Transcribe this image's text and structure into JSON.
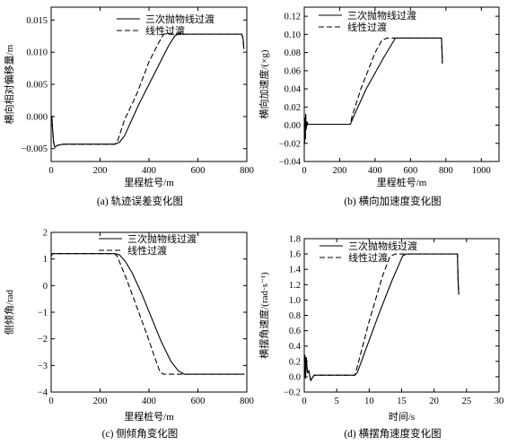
{
  "chart_data": [
    {
      "type": "line",
      "caption": "(a) 轨迹误差变化图",
      "xlabel": "里程桩号/m",
      "ylabel": "横向相对偏移量/m",
      "xlim": [
        0,
        800
      ],
      "ylim": [
        -0.007,
        0.017
      ],
      "xticks": [
        0,
        200,
        400,
        600,
        800
      ],
      "yticks": [
        -0.005,
        0.0,
        0.005,
        0.01,
        0.015
      ],
      "xtick_labels": [
        "0",
        "200",
        "400",
        "600",
        "800"
      ],
      "ytick_labels": [
        "−0.005",
        "0.000",
        "0.005",
        "0.010",
        "0.015"
      ],
      "legend_position": "top-center",
      "series": [
        {
          "name": "三次抛物线过渡",
          "style": "solid",
          "x": [
            0,
            3,
            6,
            10,
            15,
            25,
            50,
            150,
            260,
            280,
            300,
            330,
            360,
            400,
            440,
            480,
            505,
            525,
            540,
            600,
            700,
            780,
            785,
            788
          ],
          "y": [
            0.0,
            0.0,
            -0.002,
            -0.004,
            -0.0048,
            -0.0045,
            -0.0043,
            -0.0043,
            -0.0043,
            -0.004,
            -0.003,
            -0.0005,
            0.002,
            0.005,
            0.008,
            0.011,
            0.0125,
            0.013,
            0.0128,
            0.0128,
            0.0128,
            0.0128,
            0.012,
            0.0105
          ]
        },
        {
          "name": "线性过渡",
          "style": "dashed",
          "x": [
            0,
            3,
            6,
            10,
            15,
            25,
            50,
            150,
            260,
            270,
            300,
            350,
            400,
            440,
            460,
            475,
            500,
            600,
            700,
            780,
            785,
            788
          ],
          "y": [
            0.0,
            0.0,
            -0.002,
            -0.004,
            -0.0048,
            -0.0045,
            -0.0043,
            -0.0043,
            -0.0043,
            -0.004,
            -0.0005,
            0.0035,
            0.0085,
            0.0115,
            0.0128,
            0.013,
            0.0128,
            0.0128,
            0.0128,
            0.0128,
            0.012,
            0.0105
          ]
        }
      ]
    },
    {
      "type": "line",
      "caption": "(b) 横向加速度变化图",
      "xlabel": "里程桩号/m",
      "ylabel": "横向加速度/(×g)",
      "xlim": [
        0,
        1100
      ],
      "ylim": [
        -0.04,
        0.13
      ],
      "xticks": [
        0,
        200,
        400,
        600,
        800,
        1000
      ],
      "yticks": [
        -0.04,
        -0.02,
        0.0,
        0.02,
        0.04,
        0.06,
        0.08,
        0.1,
        0.12
      ],
      "xtick_labels": [
        "0",
        "200",
        "400",
        "600",
        "800",
        "1000"
      ],
      "ytick_labels": [
        "−0.04",
        "−0.02",
        "0.00",
        "0.02",
        "0.04",
        "0.06",
        "0.08",
        "0.10",
        "0.12"
      ],
      "legend_position": "top-center",
      "series": [
        {
          "name": "三次抛物线过渡",
          "style": "solid",
          "x": [
            0,
            2,
            4,
            6,
            8,
            10,
            14,
            20,
            40,
            260,
            280,
            350,
            450,
            515,
            540,
            700,
            775,
            778,
            780
          ],
          "y": [
            0.0,
            -0.02,
            0.008,
            -0.015,
            0.012,
            -0.005,
            0.004,
            0.001,
            0.001,
            0.001,
            0.01,
            0.04,
            0.075,
            0.096,
            0.096,
            0.096,
            0.096,
            0.08,
            0.068
          ]
        },
        {
          "name": "线性过渡",
          "style": "dashed",
          "x": [
            0,
            2,
            4,
            6,
            8,
            10,
            14,
            20,
            40,
            260,
            270,
            320,
            400,
            440,
            470,
            500,
            700,
            775,
            778,
            780
          ],
          "y": [
            0.0,
            -0.02,
            0.008,
            -0.015,
            0.012,
            -0.005,
            0.004,
            0.001,
            0.001,
            0.001,
            0.01,
            0.04,
            0.08,
            0.094,
            0.096,
            0.096,
            0.096,
            0.096,
            0.08,
            0.068
          ]
        }
      ]
    },
    {
      "type": "line",
      "caption": "(c) 侧倾角变化图",
      "xlabel": "里程桩号/m",
      "ylabel": "侧倾角/rad",
      "xlim": [
        0,
        800
      ],
      "ylim": [
        -4,
        2
      ],
      "xticks": [
        0,
        200,
        400,
        600,
        800
      ],
      "yticks": [
        -4,
        -3,
        -2,
        -1,
        0,
        1,
        2
      ],
      "xtick_labels": [
        "0",
        "200",
        "400",
        "600",
        "800"
      ],
      "ytick_labels": [
        "−4",
        "−3",
        "−2",
        "−1",
        "0",
        "1",
        "2"
      ],
      "legend_position": "top-center",
      "series": [
        {
          "name": "三次抛物线过渡",
          "style": "solid",
          "x": [
            0,
            5,
            20,
            100,
            200,
            260,
            280,
            300,
            330,
            370,
            410,
            450,
            490,
            520,
            545,
            560,
            600,
            700,
            790
          ],
          "y": [
            1.1,
            1.2,
            1.2,
            1.2,
            1.2,
            1.2,
            1.15,
            0.95,
            0.5,
            -0.3,
            -1.2,
            -2.1,
            -2.85,
            -3.2,
            -3.33,
            -3.33,
            -3.33,
            -3.33,
            -3.33
          ]
        },
        {
          "name": "线性过渡",
          "style": "dashed",
          "x": [
            0,
            5,
            20,
            100,
            200,
            260,
            270,
            310,
            350,
            390,
            420,
            445,
            460,
            600,
            700,
            790
          ],
          "y": [
            1.1,
            1.2,
            1.2,
            1.2,
            1.2,
            1.2,
            1.1,
            0.2,
            -0.8,
            -1.8,
            -2.6,
            -3.25,
            -3.33,
            -3.33,
            -3.33,
            -3.33
          ]
        }
      ]
    },
    {
      "type": "line",
      "caption": "(d) 横摆角速度变化图",
      "xlabel": "时间/s",
      "ylabel": "横摆角速度/(rad·s⁻¹)",
      "xlim": [
        0,
        30
      ],
      "ylim": [
        -0.2,
        1.8
      ],
      "xticks": [
        0,
        5,
        10,
        15,
        20,
        25,
        30
      ],
      "yticks": [
        -0.2,
        0.0,
        0.2,
        0.4,
        0.6,
        0.8,
        1.0,
        1.2,
        1.4,
        1.6,
        1.8
      ],
      "xtick_labels": [
        "0",
        "5",
        "10",
        "15",
        "20",
        "25",
        "30"
      ],
      "ytick_labels": [
        "−0.2",
        "0.0",
        "0.2",
        "0.4",
        "0.6",
        "0.8",
        "1.0",
        "1.2",
        "1.4",
        "1.6",
        "1.8"
      ],
      "legend_position": "top-center",
      "series": [
        {
          "name": "三次抛物线过渡",
          "style": "solid",
          "x": [
            0,
            0.1,
            0.2,
            0.3,
            0.5,
            0.7,
            1.0,
            1.5,
            2.0,
            7.8,
            8.2,
            9.5,
            11.5,
            13.5,
            15.2,
            15.8,
            18,
            21,
            23.6,
            23.7,
            23.8
          ],
          "y": [
            0.0,
            0.28,
            -0.02,
            0.25,
            0.05,
            0.08,
            -0.05,
            0.02,
            0.02,
            0.02,
            0.06,
            0.36,
            0.82,
            1.25,
            1.58,
            1.6,
            1.6,
            1.6,
            1.6,
            1.25,
            1.07
          ]
        },
        {
          "name": "线性过渡",
          "style": "dashed",
          "x": [
            0,
            0.1,
            0.2,
            0.3,
            0.5,
            0.7,
            1.0,
            1.5,
            2.0,
            7.8,
            8.0,
            10.0,
            12.0,
            13.2,
            14.0,
            18,
            21,
            23.6,
            23.7,
            23.8
          ],
          "y": [
            0.0,
            0.28,
            -0.02,
            0.25,
            0.05,
            0.08,
            -0.05,
            0.02,
            0.02,
            0.02,
            0.08,
            0.72,
            1.3,
            1.57,
            1.6,
            1.6,
            1.6,
            1.6,
            1.25,
            1.07
          ]
        }
      ]
    }
  ]
}
